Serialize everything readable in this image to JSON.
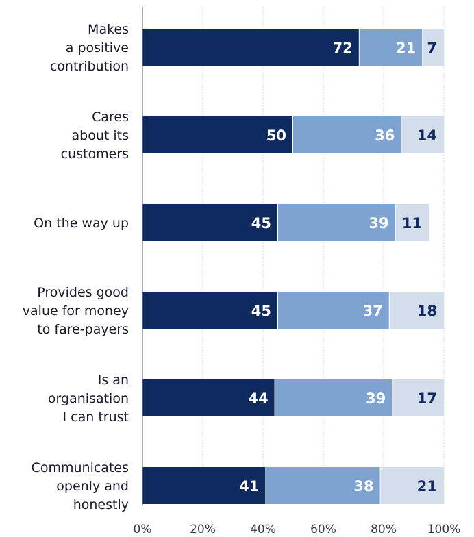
{
  "chart_data": {
    "type": "bar",
    "orientation": "horizontal",
    "stacked": true,
    "categories": [
      [
        "Makes",
        "a positive",
        "contribution"
      ],
      [
        "Cares",
        "about its",
        "customers"
      ],
      [
        "On the way up"
      ],
      [
        "Provides good",
        "value for money",
        "to fare-payers"
      ],
      [
        "Is an",
        "organisation",
        "I can trust"
      ],
      [
        "Communicates",
        "openly and",
        "honestly"
      ]
    ],
    "series": [
      {
        "values": [
          72,
          50,
          45,
          45,
          44,
          41
        ]
      },
      {
        "values": [
          21,
          36,
          39,
          37,
          39,
          38
        ]
      },
      {
        "values": [
          7,
          14,
          11,
          18,
          17,
          21
        ]
      }
    ],
    "x_ticks": [
      "0%",
      "20%",
      "40%",
      "60%",
      "80%",
      "100%"
    ],
    "xlim": [
      0,
      100
    ],
    "grid": "vertical dotted",
    "colors": [
      "#0e2a5e",
      "#7ea3d1",
      "#d3ddec"
    ],
    "label_colors": [
      "#ffffff",
      "#ffffff",
      "#0e2a5e"
    ]
  }
}
